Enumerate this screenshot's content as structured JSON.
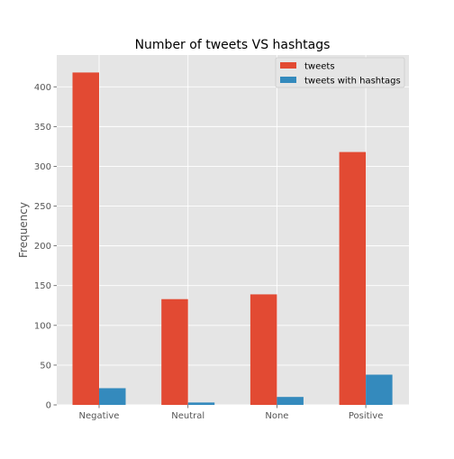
{
  "chart_data": {
    "type": "bar",
    "title": "Number of tweets VS hashtags",
    "xlabel": "",
    "ylabel": "Frequency",
    "categories": [
      "Negative",
      "Neutral",
      "None",
      "Positive"
    ],
    "series": [
      {
        "name": "tweets",
        "values": [
          418,
          133,
          139,
          318
        ],
        "color": "#E24A33"
      },
      {
        "name": "tweets with hashtags",
        "values": [
          21,
          3,
          10,
          38
        ],
        "color": "#348ABD"
      }
    ],
    "ylim": [
      0,
      440
    ],
    "yticks": [
      0,
      50,
      100,
      150,
      200,
      250,
      300,
      350,
      400
    ],
    "grid": true,
    "legend": "top-right",
    "background": "#E5E5E5",
    "grid_color": "#FFFFFF"
  }
}
